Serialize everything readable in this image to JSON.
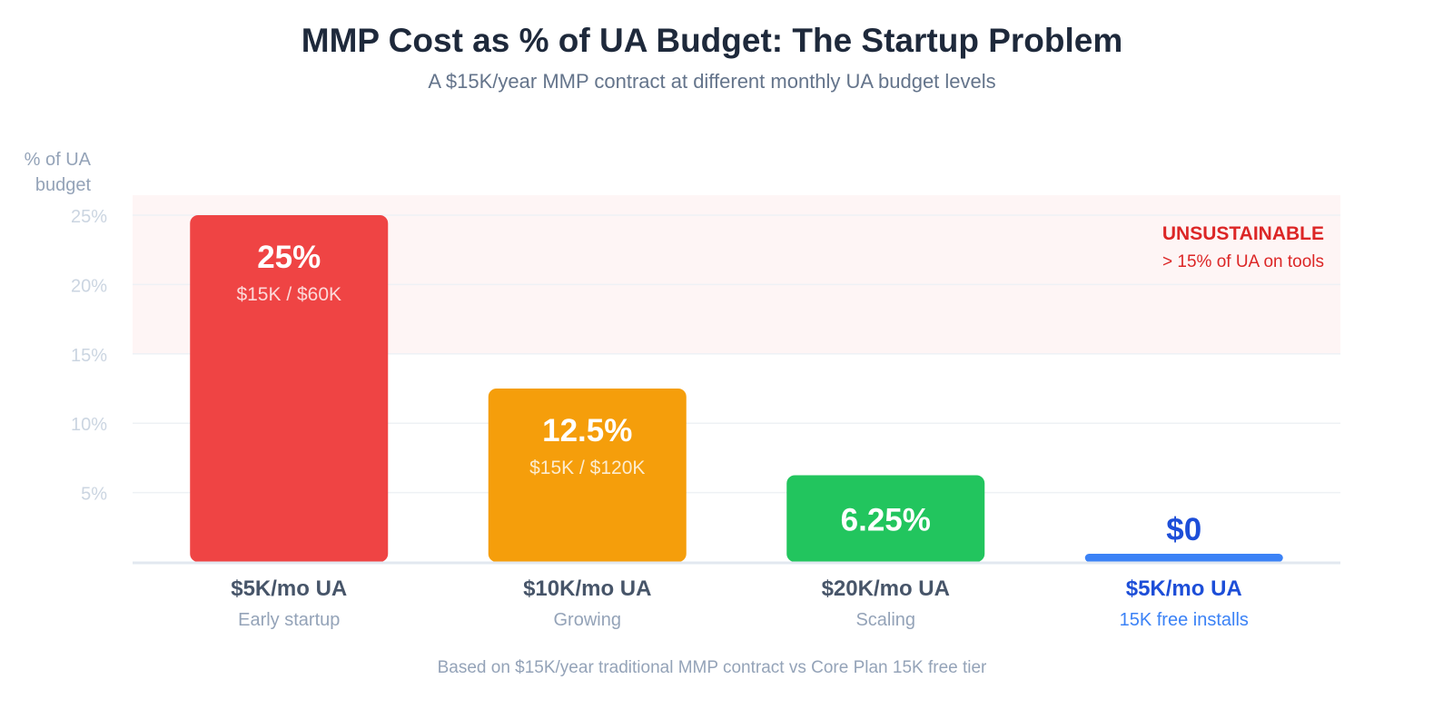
{
  "chart_data": {
    "type": "bar",
    "title": "MMP Cost as % of UA Budget: The Startup Problem",
    "subtitle": "A $15K/year MMP contract at different monthly UA budget levels",
    "ylabel": "% of UA budget",
    "ylabel_lines": [
      "% of UA",
      "budget"
    ],
    "xlabel": "",
    "ylim": [
      0,
      25
    ],
    "yticks": [
      5,
      10,
      15,
      20,
      25
    ],
    "ytick_labels": [
      "5%",
      "10%",
      "15%",
      "20%",
      "25%"
    ],
    "grid": true,
    "threshold_zone": {
      "from": 15,
      "to": 25,
      "label": "UNSUSTAINABLE",
      "sublabel": "> 15% of UA on tools",
      "color": "#fef2f2",
      "text_color": "#dc2626"
    },
    "categories": [
      "$5K/mo UA",
      "$10K/mo UA",
      "$20K/mo UA",
      "$5K/mo UA"
    ],
    "category_sublabels": [
      "Early startup",
      "Growing",
      "Scaling",
      "15K free installs"
    ],
    "values": [
      25,
      12.5,
      6.25,
      0
    ],
    "value_labels": [
      "25%",
      "12.5%",
      "6.25%",
      "$0"
    ],
    "bar_sublabels": [
      "$15K / $60K",
      "$15K / $120K",
      "",
      ""
    ],
    "colors": [
      "#ef4444",
      "#f59e0b",
      "#22c55e",
      "#3b82f6"
    ],
    "highlight_index": 3,
    "highlight_colors": {
      "value": "#1d4ed8",
      "category": "#1d4ed8",
      "sublabel": "#3b82f6"
    },
    "footnote": "Based on $15K/year traditional MMP contract vs Core Plan 15K free tier"
  }
}
